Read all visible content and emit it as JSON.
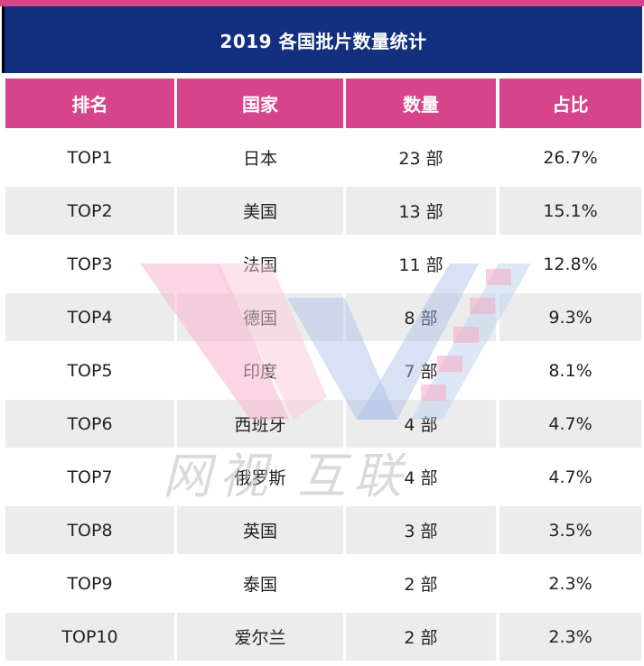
{
  "title": "2019 各国批片数量统计",
  "headers": [
    "排名",
    "国家",
    "数量",
    "占比"
  ],
  "rows": [
    {
      "rank": "TOP1",
      "country": "日本",
      "count": "23 部",
      "share": "26.7%"
    },
    {
      "rank": "TOP2",
      "country": "美国",
      "count": "13 部",
      "share": "15.1%"
    },
    {
      "rank": "TOP3",
      "country": "法国",
      "count": "11 部",
      "share": "12.8%"
    },
    {
      "rank": "TOP4",
      "country": "德国",
      "count": "8 部",
      "share": "9.3%"
    },
    {
      "rank": "TOP5",
      "country": "印度",
      "count": "7 部",
      "share": "8.1%"
    },
    {
      "rank": "TOP6",
      "country": "西班牙",
      "count": "4 部",
      "share": "4.7%"
    },
    {
      "rank": "TOP7",
      "country": "俄罗斯",
      "count": "4 部",
      "share": "4.7%"
    },
    {
      "rank": "TOP8",
      "country": "英国",
      "count": "3 部",
      "share": "3.5%"
    },
    {
      "rank": "TOP9",
      "country": "泰国",
      "count": "2 部",
      "share": "2.3%"
    },
    {
      "rank": "TOP10",
      "country": "爱尔兰",
      "count": "2 部",
      "share": "2.3%"
    }
  ],
  "watermark": {
    "text": "网视 互联",
    "icon": "w-logo-icon"
  },
  "colors": {
    "accent": "#d6448a",
    "title_bg": "#13307e",
    "alt_row": "#ececec"
  }
}
